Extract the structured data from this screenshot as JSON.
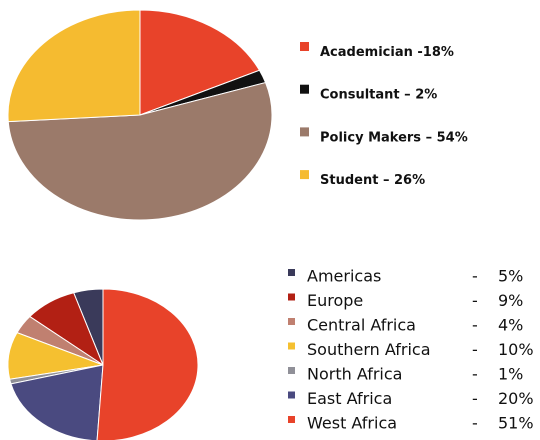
{
  "chart_data": [
    {
      "type": "pie",
      "categories": [
        "Academician",
        "Consultant",
        "Policy Makers",
        "Student"
      ],
      "values": [
        18,
        2,
        54,
        26
      ],
      "value_labels": [
        "-18%",
        "– 2%",
        "– 54%",
        "– 26%"
      ],
      "colors": [
        "#e8432a",
        "#111111",
        "#9b7a6a",
        "#f5bb30"
      ]
    },
    {
      "type": "pie",
      "categories": [
        "Americas",
        "Europe",
        "Central Africa",
        "Southern Africa",
        "North Africa",
        "East Africa",
        "West Africa"
      ],
      "values": [
        5,
        9,
        4,
        10,
        1,
        20,
        51
      ],
      "value_labels": [
        "5%",
        "9%",
        "4%",
        "10%",
        "1%",
        "20%",
        "51%"
      ],
      "separator": "-",
      "colors": [
        "#3a3a5a",
        "#b22014",
        "#c08070",
        "#f5c030",
        "#909098",
        "#4a4a80",
        "#e8432a"
      ]
    }
  ]
}
